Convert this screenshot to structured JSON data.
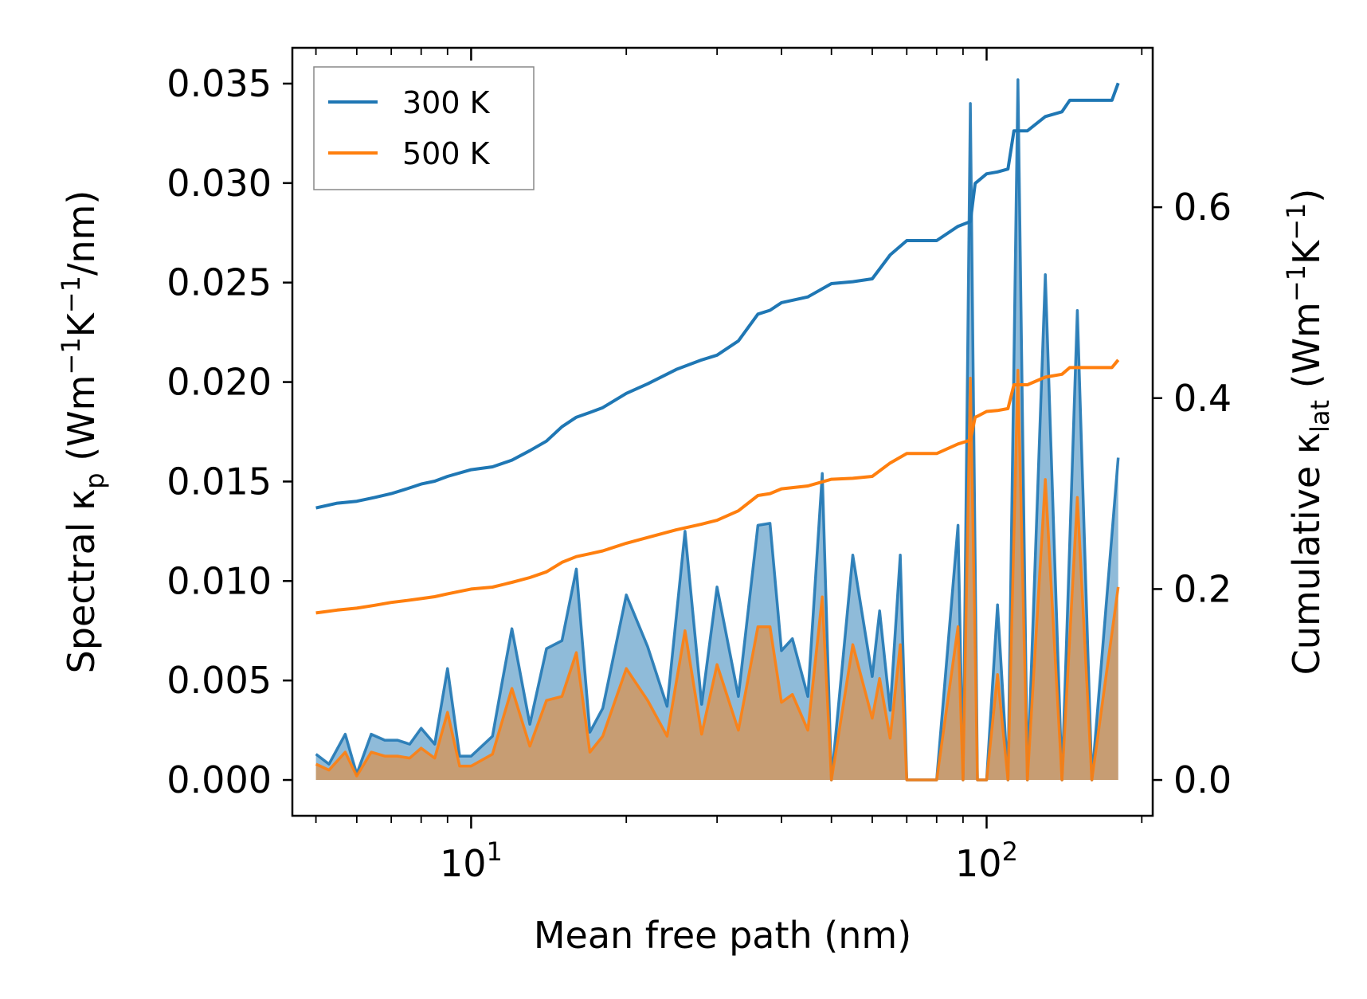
{
  "chart_data": {
    "type": "line",
    "title": "",
    "xlabel": "Mean free path (nm)",
    "xscale": "log",
    "xlim": [
      4.5,
      210
    ],
    "xticks": [
      {
        "value": 10,
        "base": "10",
        "exp": "1"
      },
      {
        "value": 100,
        "base": "10",
        "exp": "2"
      }
    ],
    "ylabel_left": {
      "main": "Spectral κ",
      "sub": "p",
      "unit_start": " (Wm",
      "sup1": "−1",
      "unit_mid": "K",
      "sup2": "−1",
      "unit_end": "/nm)"
    },
    "ylim_left": [
      -0.0018,
      0.0368
    ],
    "yticks_left": [
      "0.000",
      "0.005",
      "0.010",
      "0.015",
      "0.020",
      "0.025",
      "0.030",
      "0.035"
    ],
    "ylabel_right": {
      "main": "Cumulative κ",
      "sub": "lat",
      "unit_start": " (Wm",
      "sup1": "−1",
      "unit_mid": "K",
      "sup2": "−1",
      "unit_end": ")"
    },
    "ylim_right": [
      -0.0375,
      0.767
    ],
    "yticks_right": [
      "0.0",
      "0.2",
      "0.4",
      "0.6"
    ],
    "legend": {
      "position": "top-left",
      "entries": [
        {
          "label": "300 K",
          "color": "#1f77b4"
        },
        {
          "label": "500 K",
          "color": "#ff7f0e"
        }
      ]
    },
    "series": [
      {
        "name": "300 K",
        "color": "#1f77b4",
        "cumulative": {
          "x": [
            5,
            5.5,
            6,
            6.5,
            7,
            7.5,
            8,
            8.5,
            9,
            10,
            11,
            12,
            13,
            14,
            15,
            16,
            17,
            18,
            20,
            22,
            25,
            28,
            30,
            33,
            36,
            38,
            40,
            45,
            50,
            55,
            60,
            65,
            70,
            75,
            80,
            88,
            93,
            95,
            96,
            100,
            105,
            110,
            113,
            115,
            120,
            130,
            140,
            145,
            150,
            160,
            175,
            180
          ],
          "y": [
            0.285,
            0.29,
            0.292,
            0.296,
            0.3,
            0.305,
            0.31,
            0.313,
            0.318,
            0.325,
            0.328,
            0.335,
            0.345,
            0.355,
            0.37,
            0.38,
            0.385,
            0.39,
            0.405,
            0.415,
            0.43,
            0.44,
            0.445,
            0.46,
            0.488,
            0.492,
            0.5,
            0.506,
            0.52,
            0.522,
            0.525,
            0.55,
            0.565,
            0.565,
            0.565,
            0.58,
            0.585,
            0.625,
            0.627,
            0.635,
            0.637,
            0.64,
            0.68,
            0.68,
            0.68,
            0.695,
            0.7,
            0.712,
            0.712,
            0.712,
            0.712,
            0.73
          ]
        },
        "spectral": {
          "x": [
            5,
            5.3,
            5.7,
            6,
            6.4,
            6.8,
            7.2,
            7.6,
            8,
            8.5,
            9,
            9.5,
            10,
            11,
            11.5,
            12,
            13,
            14,
            15,
            16,
            17,
            18,
            20,
            22,
            24,
            26,
            28,
            30,
            33,
            36,
            38,
            40,
            42,
            45,
            48,
            50,
            55,
            60,
            62,
            65,
            68,
            70,
            75,
            80,
            88,
            90,
            93,
            96,
            100,
            105,
            110,
            115,
            120,
            130,
            140,
            150,
            160,
            180
          ],
          "y": [
            0.0013,
            0.0008,
            0.0023,
            0.0003,
            0.0023,
            0.002,
            0.002,
            0.0018,
            0.0026,
            0.0018,
            0.0056,
            0.0012,
            0.0012,
            0.0022,
            0.005,
            0.0076,
            0.0028,
            0.0066,
            0.007,
            0.0106,
            0.0024,
            0.0036,
            0.0093,
            0.0067,
            0.0037,
            0.0125,
            0.0038,
            0.0097,
            0.0042,
            0.0128,
            0.0129,
            0.0065,
            0.0071,
            0.0042,
            0.0154,
            0.0,
            0.0113,
            0.0052,
            0.0085,
            0.0035,
            0.0113,
            0.0,
            0.0,
            0.0,
            0.0128,
            0.0,
            0.034,
            0.0,
            0.0,
            0.0088,
            0.0,
            0.0352,
            0.0,
            0.0254,
            0.0,
            0.0236,
            0.0,
            0.0162
          ]
        }
      },
      {
        "name": "500 K",
        "color": "#ff7f0e",
        "cumulative": {
          "x": [
            5,
            5.5,
            6,
            6.5,
            7,
            7.5,
            8,
            8.5,
            9,
            10,
            11,
            12,
            13,
            14,
            15,
            16,
            17,
            18,
            20,
            22,
            25,
            28,
            30,
            33,
            36,
            38,
            40,
            45,
            50,
            55,
            60,
            65,
            70,
            75,
            80,
            88,
            93,
            95,
            96,
            100,
            105,
            110,
            113,
            115,
            120,
            130,
            140,
            145,
            150,
            160,
            175,
            180
          ],
          "y": [
            0.175,
            0.178,
            0.18,
            0.183,
            0.186,
            0.188,
            0.19,
            0.192,
            0.195,
            0.2,
            0.202,
            0.207,
            0.212,
            0.218,
            0.228,
            0.234,
            0.237,
            0.24,
            0.248,
            0.254,
            0.262,
            0.268,
            0.272,
            0.282,
            0.298,
            0.3,
            0.305,
            0.308,
            0.315,
            0.316,
            0.318,
            0.332,
            0.342,
            0.342,
            0.342,
            0.352,
            0.356,
            0.38,
            0.381,
            0.386,
            0.387,
            0.389,
            0.414,
            0.414,
            0.414,
            0.422,
            0.425,
            0.432,
            0.432,
            0.432,
            0.432,
            0.44
          ]
        },
        "spectral": {
          "x": [
            5,
            5.3,
            5.7,
            6,
            6.4,
            6.8,
            7.2,
            7.6,
            8,
            8.5,
            9,
            9.5,
            10,
            11,
            11.5,
            12,
            13,
            14,
            15,
            16,
            17,
            18,
            20,
            22,
            24,
            26,
            28,
            30,
            33,
            36,
            38,
            40,
            42,
            45,
            48,
            50,
            55,
            60,
            62,
            65,
            68,
            70,
            75,
            80,
            88,
            90,
            93,
            96,
            100,
            105,
            110,
            115,
            120,
            130,
            140,
            150,
            160,
            180
          ],
          "y": [
            0.0008,
            0.0005,
            0.0014,
            0.0002,
            0.0014,
            0.0012,
            0.0012,
            0.0011,
            0.0016,
            0.0011,
            0.0034,
            0.0007,
            0.0007,
            0.0013,
            0.003,
            0.0046,
            0.0017,
            0.004,
            0.0042,
            0.0064,
            0.0014,
            0.0022,
            0.0056,
            0.004,
            0.0022,
            0.0075,
            0.0023,
            0.0058,
            0.0025,
            0.0077,
            0.0077,
            0.0039,
            0.0043,
            0.0025,
            0.0092,
            0.0,
            0.0068,
            0.0031,
            0.0051,
            0.0021,
            0.0068,
            0.0,
            0.0,
            0.0,
            0.0077,
            0.0,
            0.0202,
            0.0,
            0.0,
            0.0053,
            0.0,
            0.0206,
            0.0,
            0.0151,
            0.0,
            0.0142,
            0.0,
            0.0097
          ]
        }
      }
    ]
  }
}
